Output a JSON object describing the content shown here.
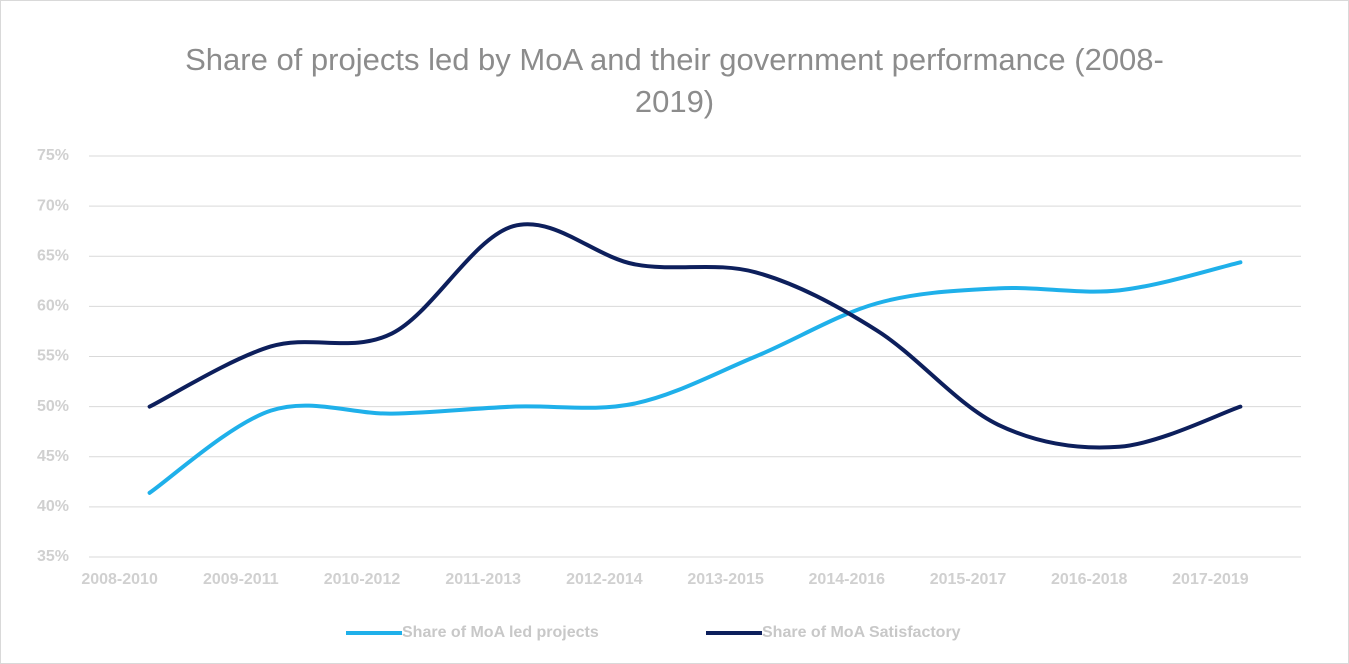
{
  "chart_data": {
    "type": "line",
    "title": "Share of projects led by MoA and their government performance (2008-2019)",
    "categories": [
      "2008-2010",
      "2009-2011",
      "2010-2012",
      "2011-2013",
      "2012-2014",
      "2013-2015",
      "2014-2016",
      "2015-2017",
      "2016-2018",
      "2017-2019"
    ],
    "series": [
      {
        "name": "Share of MoA led projects",
        "color": "#1fb0ea",
        "values": [
          41.4,
          49.6,
          49.3,
          50,
          50.3,
          55,
          60.3,
          61.8,
          61.6,
          64.4
        ]
      },
      {
        "name": "Share of MoA Satisfactory",
        "color": "#0d1f5c",
        "values": [
          50,
          56,
          57.3,
          68,
          64.2,
          63.4,
          57.6,
          48.2,
          46,
          50
        ]
      }
    ],
    "ylim": [
      35,
      75
    ],
    "yticks": [
      {
        "value": 35,
        "label": "35%"
      },
      {
        "value": 40,
        "label": "40%"
      },
      {
        "value": 45,
        "label": "45%"
      },
      {
        "value": 50,
        "label": "50%"
      },
      {
        "value": 55,
        "label": "55%"
      },
      {
        "value": 60,
        "label": "60%"
      },
      {
        "value": 65,
        "label": "65%"
      },
      {
        "value": 70,
        "label": "70%"
      },
      {
        "value": 75,
        "label": "75%"
      }
    ],
    "grid": true,
    "legend": "bottom"
  }
}
